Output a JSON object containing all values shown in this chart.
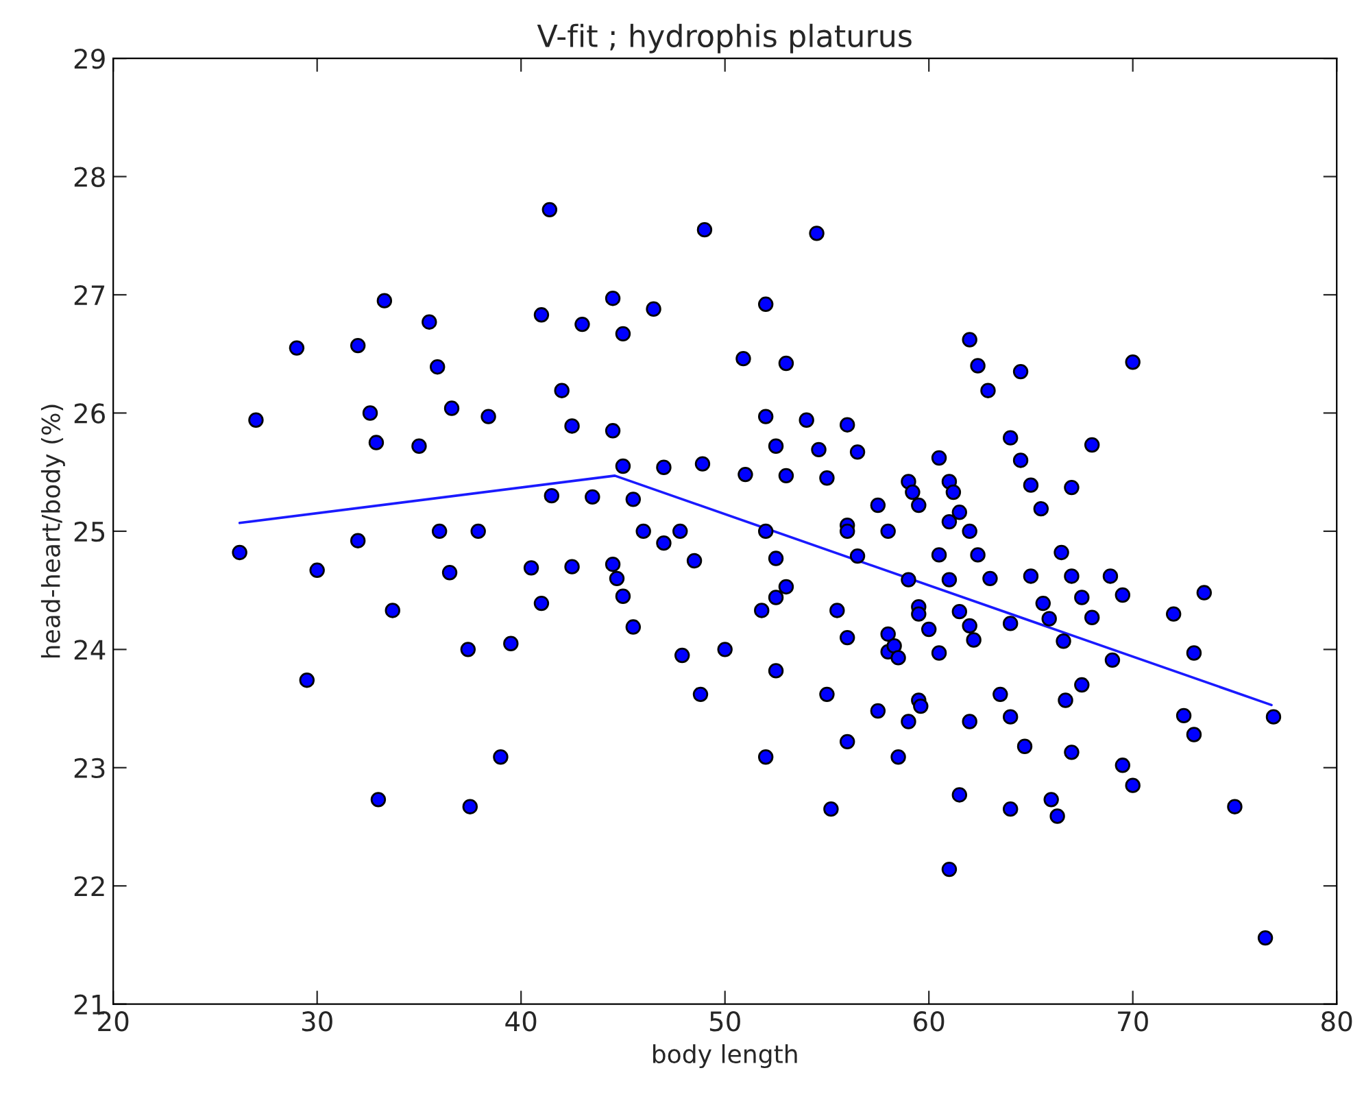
{
  "chart_data": {
    "type": "scatter",
    "title": "V-fit ; hydrophis platurus",
    "xlabel": "body length",
    "ylabel": "head-heart/body (%)",
    "xlim": [
      20,
      80
    ],
    "xticks": [
      20,
      30,
      40,
      50,
      60,
      70,
      80
    ],
    "ylim": [
      21,
      29
    ],
    "yticks": [
      21,
      22,
      23,
      24,
      25,
      26,
      27,
      28,
      29
    ],
    "grid": false,
    "legend": false,
    "series": [
      {
        "marker": "circle",
        "color": "#0000ff",
        "x": [
          26.2,
          27,
          29,
          29.5,
          30,
          32,
          32,
          32.6,
          32.9,
          33,
          33.3,
          33.7,
          35,
          35.5,
          35.9,
          36,
          36.5,
          36.6,
          37.4,
          37.5,
          37.9,
          38.4,
          39,
          39.5,
          40.5,
          41,
          41,
          41.4,
          41.5,
          42,
          42.5,
          42.5,
          43,
          43.5,
          44.5,
          44.5,
          44.5,
          44.7,
          45,
          45,
          45,
          45.5,
          45.5,
          46,
          46.5,
          47,
          47,
          47.8,
          47.9,
          48.5,
          48.8,
          48.9,
          49,
          50,
          50.9,
          51,
          51.8,
          52,
          52,
          52,
          52,
          52.5,
          52.5,
          52.5,
          52.5,
          53,
          53,
          53,
          54,
          54.5,
          54.6,
          55,
          55,
          55.2,
          55.5,
          56,
          56,
          56,
          56,
          56,
          56.5,
          56.5,
          57.5,
          57.5,
          58,
          58,
          58,
          58.3,
          58.5,
          58.5,
          59,
          59,
          59,
          59.2,
          59.5,
          59.5,
          59.5,
          59.5,
          59.6,
          60,
          60.5,
          60.5,
          60.5,
          61,
          61,
          61,
          61,
          61.2,
          61.5,
          61.5,
          61.5,
          62,
          62,
          62,
          62,
          62.2,
          62.4,
          62.4,
          62.9,
          63,
          63.5,
          64,
          64,
          64,
          64,
          64.5,
          64.5,
          64.7,
          65,
          65,
          65.5,
          65.6,
          65.9,
          66,
          66.3,
          66.5,
          66.6,
          66.7,
          67,
          67,
          67,
          67.5,
          67.5,
          68,
          68,
          68.9,
          69,
          69.5,
          69.5,
          70,
          70,
          72,
          72.5,
          73,
          73,
          73.5,
          75,
          76.5,
          76.9
        ],
        "values": [
          24.82,
          25.94,
          26.55,
          23.74,
          24.67,
          26.57,
          24.92,
          26.0,
          25.75,
          22.73,
          26.95,
          24.33,
          25.72,
          26.77,
          26.39,
          25.0,
          24.65,
          26.04,
          24.0,
          22.67,
          25.0,
          25.97,
          23.09,
          24.05,
          24.69,
          26.83,
          24.39,
          27.72,
          25.3,
          26.19,
          25.89,
          24.7,
          26.75,
          25.29,
          26.97,
          25.85,
          24.72,
          24.6,
          26.67,
          25.55,
          24.45,
          25.27,
          24.19,
          25.0,
          26.88,
          25.54,
          24.9,
          25.0,
          23.95,
          24.75,
          23.62,
          25.57,
          27.55,
          24.0,
          26.46,
          25.48,
          24.33,
          26.92,
          25.97,
          25.0,
          23.09,
          25.72,
          24.44,
          24.77,
          23.82,
          26.42,
          25.47,
          24.53,
          25.94,
          27.52,
          25.69,
          25.45,
          23.62,
          22.65,
          24.33,
          25.9,
          25.05,
          25.0,
          24.1,
          23.22,
          25.67,
          24.79,
          25.22,
          23.48,
          25.0,
          24.13,
          23.98,
          24.03,
          23.93,
          23.09,
          25.42,
          24.59,
          23.39,
          25.33,
          25.22,
          24.36,
          24.3,
          23.57,
          23.52,
          24.17,
          25.62,
          24.8,
          23.97,
          25.42,
          25.08,
          24.59,
          22.14,
          25.33,
          25.16,
          24.32,
          22.77,
          26.62,
          25.0,
          24.2,
          23.39,
          24.08,
          26.4,
          24.8,
          26.19,
          24.6,
          23.62,
          25.79,
          24.22,
          23.43,
          22.65,
          26.35,
          25.6,
          23.18,
          25.39,
          24.62,
          25.19,
          24.39,
          24.26,
          22.73,
          22.59,
          24.82,
          24.07,
          23.57,
          25.37,
          24.62,
          23.13,
          24.44,
          23.7,
          25.73,
          24.27,
          24.62,
          23.91,
          24.46,
          23.02,
          26.43,
          22.85,
          24.3,
          23.44,
          23.97,
          23.28,
          24.48,
          22.67,
          21.56,
          23.43
        ]
      },
      {
        "type": "line",
        "marker": "none",
        "line_style": "solid",
        "color": "#1a1aff",
        "x": [
          26.2,
          44.6,
          76.8
        ],
        "values": [
          25.07,
          25.47,
          23.53
        ]
      }
    ]
  }
}
